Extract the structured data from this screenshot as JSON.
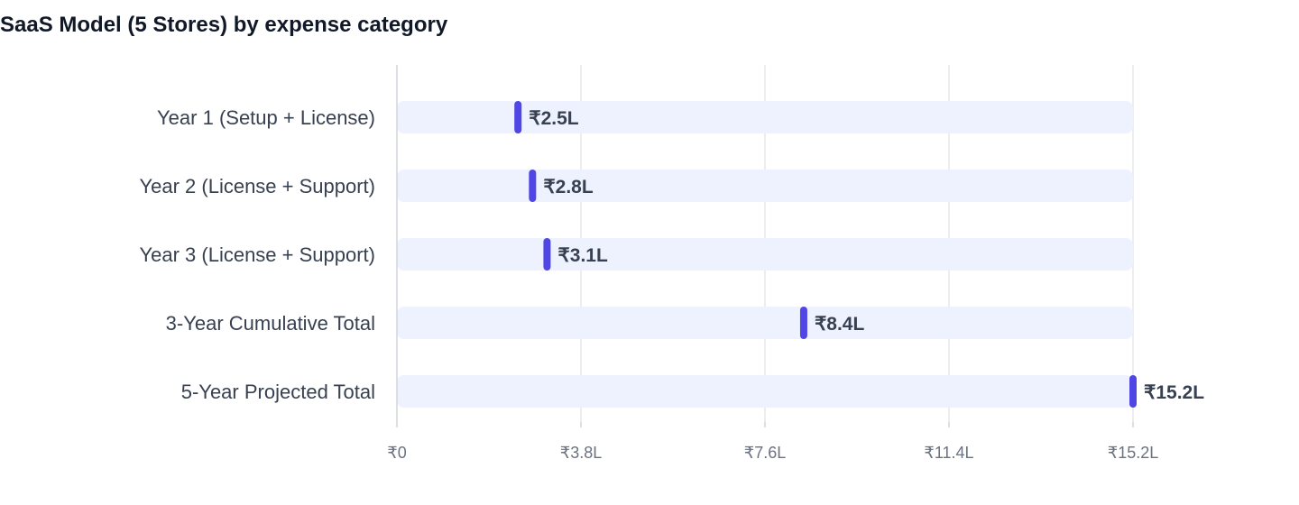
{
  "chart_data": {
    "type": "bar",
    "title": "SaaS Model (5 Stores) by expense category",
    "categories": [
      "Year 1 (Setup + License)",
      "Year 2 (License + Support)",
      "Year 3 (License + Support)",
      "3-Year Cumulative Total",
      "5-Year Projected Total"
    ],
    "values": [
      2.5,
      2.8,
      3.1,
      8.4,
      15.2
    ],
    "value_labels": [
      "₹2.5L",
      "₹2.8L",
      "₹3.1L",
      "₹8.4L",
      "₹15.2L"
    ],
    "xlim": [
      0,
      15.2
    ],
    "xticks": [
      0,
      3.8,
      7.6,
      11.4,
      15.2
    ],
    "xtick_labels": [
      "₹0",
      "₹3.8L",
      "₹7.6L",
      "₹11.4L",
      "₹15.2L"
    ],
    "orientation": "horizontal",
    "grid": true,
    "colors": {
      "marker": "#4f46e5",
      "track": "#eef2ff",
      "grid": "#e5e7eb",
      "label": "#374151",
      "tick": "#6b7280",
      "value": "#374151"
    }
  }
}
